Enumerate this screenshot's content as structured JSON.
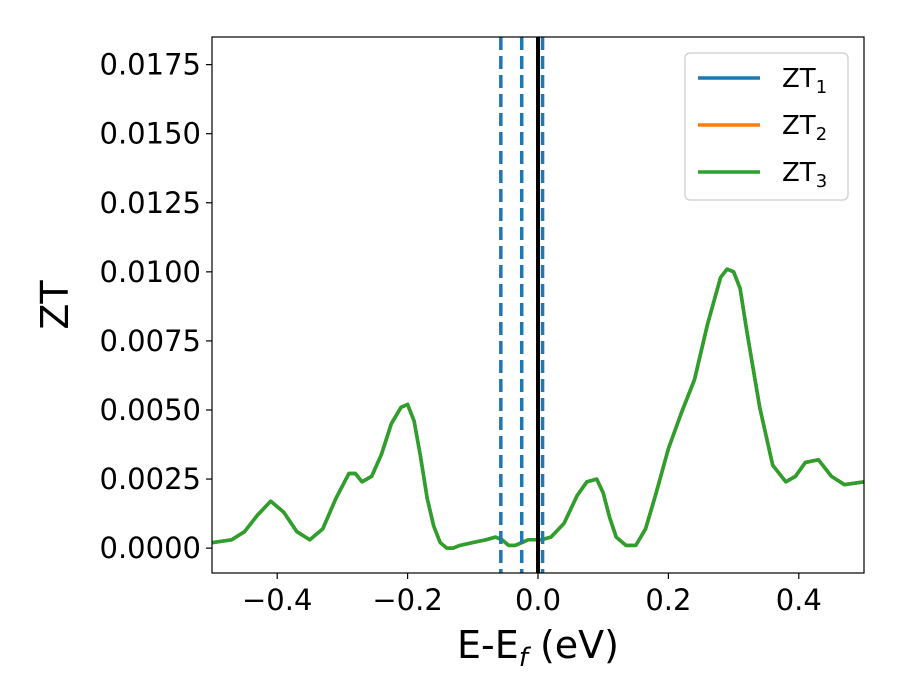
{
  "chart_data": {
    "type": "line",
    "xlabel_main": "E-E",
    "xlabel_sub": "f",
    "xlabel_unit": " (eV)",
    "ylabel": "ZT",
    "xlim": [
      -0.5,
      0.5
    ],
    "ylim": [
      -0.0009,
      0.0185
    ],
    "xticks": [
      -0.4,
      -0.2,
      0.0,
      0.2,
      0.4
    ],
    "xtick_labels": [
      "−0.4",
      "−0.2",
      "0.0",
      "0.2",
      "0.4"
    ],
    "yticks": [
      0.0,
      0.0025,
      0.005,
      0.0075,
      0.01,
      0.0125,
      0.015,
      0.0175
    ],
    "ytick_labels": [
      "0.0000",
      "0.0025",
      "0.0050",
      "0.0075",
      "0.0100",
      "0.0125",
      "0.0150",
      "0.0175"
    ],
    "legend_position": "top-right",
    "grid": false,
    "vlines": [
      {
        "x": -0.057,
        "style": "dashed",
        "color": "#1f77b4"
      },
      {
        "x": -0.025,
        "style": "dashed",
        "color": "#1f77b4"
      },
      {
        "x": 0.007,
        "style": "dashed",
        "color": "#1f77b4"
      },
      {
        "x": 0.0,
        "style": "solid",
        "color": "#000000"
      }
    ],
    "series": [
      {
        "name_main": "ZT",
        "name_sub": "1",
        "color": "#1f77b4",
        "x": [
          -0.5,
          -0.47,
          -0.45,
          -0.43,
          -0.41,
          -0.39,
          -0.37,
          -0.35,
          -0.33,
          -0.31,
          -0.29,
          -0.28,
          -0.27,
          -0.255,
          -0.24,
          -0.225,
          -0.21,
          -0.2,
          -0.19,
          -0.18,
          -0.17,
          -0.16,
          -0.15,
          -0.14,
          -0.13,
          -0.12,
          -0.1,
          -0.08,
          -0.065,
          -0.055,
          -0.045,
          -0.035,
          -0.025,
          -0.015,
          -0.005,
          0.005,
          0.02,
          0.04,
          0.06,
          0.075,
          0.09,
          0.1,
          0.11,
          0.12,
          0.135,
          0.15,
          0.165,
          0.18,
          0.2,
          0.22,
          0.24,
          0.26,
          0.28,
          0.29,
          0.3,
          0.31,
          0.32,
          0.34,
          0.36,
          0.38,
          0.395,
          0.41,
          0.43,
          0.45,
          0.47,
          0.5
        ],
        "y": [
          0.0002,
          0.0003,
          0.0006,
          0.0012,
          0.0017,
          0.0013,
          0.0006,
          0.0003,
          0.0007,
          0.0018,
          0.0027,
          0.0027,
          0.0024,
          0.0026,
          0.0034,
          0.0045,
          0.0051,
          0.0052,
          0.0046,
          0.0033,
          0.0018,
          0.0008,
          0.0002,
          0.0,
          0.0,
          0.0001,
          0.0002,
          0.0003,
          0.0004,
          0.0003,
          0.0001,
          0.0001,
          0.0002,
          0.0003,
          0.0003,
          0.0003,
          0.0004,
          0.0009,
          0.0019,
          0.0024,
          0.0025,
          0.002,
          0.0011,
          0.0004,
          0.0001,
          0.0001,
          0.0007,
          0.0019,
          0.0036,
          0.0049,
          0.0061,
          0.0081,
          0.0098,
          0.0101,
          0.01,
          0.0094,
          0.0079,
          0.0051,
          0.003,
          0.0024,
          0.0026,
          0.0031,
          0.0032,
          0.0026,
          0.0023,
          0.0024
        ]
      },
      {
        "name_main": "ZT",
        "name_sub": "2",
        "color": "#ff7f0e",
        "x": [
          -0.5,
          -0.47,
          -0.45,
          -0.43,
          -0.41,
          -0.39,
          -0.37,
          -0.35,
          -0.33,
          -0.31,
          -0.29,
          -0.28,
          -0.27,
          -0.255,
          -0.24,
          -0.225,
          -0.21,
          -0.2,
          -0.19,
          -0.18,
          -0.17,
          -0.16,
          -0.15,
          -0.14,
          -0.13,
          -0.12,
          -0.1,
          -0.08,
          -0.065,
          -0.055,
          -0.045,
          -0.035,
          -0.025,
          -0.015,
          -0.005,
          0.005,
          0.02,
          0.04,
          0.06,
          0.075,
          0.09,
          0.1,
          0.11,
          0.12,
          0.135,
          0.15,
          0.165,
          0.18,
          0.2,
          0.22,
          0.24,
          0.26,
          0.28,
          0.29,
          0.3,
          0.31,
          0.32,
          0.34,
          0.36,
          0.38,
          0.395,
          0.41,
          0.43,
          0.45,
          0.47,
          0.5
        ],
        "y": [
          0.0002,
          0.0003,
          0.0006,
          0.0012,
          0.0017,
          0.0013,
          0.0006,
          0.0003,
          0.0007,
          0.0018,
          0.0027,
          0.0027,
          0.0024,
          0.0026,
          0.0034,
          0.0045,
          0.0051,
          0.0052,
          0.0046,
          0.0033,
          0.0018,
          0.0008,
          0.0002,
          0.0,
          0.0,
          0.0001,
          0.0002,
          0.0003,
          0.0004,
          0.0003,
          0.0001,
          0.0001,
          0.0002,
          0.0003,
          0.0003,
          0.0003,
          0.0004,
          0.0009,
          0.0019,
          0.0024,
          0.0025,
          0.002,
          0.0011,
          0.0004,
          0.0001,
          0.0001,
          0.0007,
          0.0019,
          0.0036,
          0.0049,
          0.0061,
          0.0081,
          0.0098,
          0.0101,
          0.01,
          0.0094,
          0.0079,
          0.0051,
          0.003,
          0.0024,
          0.0026,
          0.0031,
          0.0032,
          0.0026,
          0.0023,
          0.0024
        ]
      },
      {
        "name_main": "ZT",
        "name_sub": "3",
        "color": "#2ca02c",
        "x": [
          -0.5,
          -0.47,
          -0.45,
          -0.43,
          -0.41,
          -0.39,
          -0.37,
          -0.35,
          -0.33,
          -0.31,
          -0.29,
          -0.28,
          -0.27,
          -0.255,
          -0.24,
          -0.225,
          -0.21,
          -0.2,
          -0.19,
          -0.18,
          -0.17,
          -0.16,
          -0.15,
          -0.14,
          -0.13,
          -0.12,
          -0.1,
          -0.08,
          -0.065,
          -0.055,
          -0.045,
          -0.035,
          -0.025,
          -0.015,
          -0.005,
          0.005,
          0.02,
          0.04,
          0.06,
          0.075,
          0.09,
          0.1,
          0.11,
          0.12,
          0.135,
          0.15,
          0.165,
          0.18,
          0.2,
          0.22,
          0.24,
          0.26,
          0.28,
          0.29,
          0.3,
          0.31,
          0.32,
          0.34,
          0.36,
          0.38,
          0.395,
          0.41,
          0.43,
          0.45,
          0.47,
          0.5
        ],
        "y": [
          0.0002,
          0.0003,
          0.0006,
          0.0012,
          0.0017,
          0.0013,
          0.0006,
          0.0003,
          0.0007,
          0.0018,
          0.0027,
          0.0027,
          0.0024,
          0.0026,
          0.0034,
          0.0045,
          0.0051,
          0.0052,
          0.0046,
          0.0033,
          0.0018,
          0.0008,
          0.0002,
          0.0,
          0.0,
          0.0001,
          0.0002,
          0.0003,
          0.0004,
          0.0003,
          0.0001,
          0.0001,
          0.0002,
          0.0003,
          0.0003,
          0.0003,
          0.0004,
          0.0009,
          0.0019,
          0.0024,
          0.0025,
          0.002,
          0.0011,
          0.0004,
          0.0001,
          0.0001,
          0.0007,
          0.0019,
          0.0036,
          0.0049,
          0.0061,
          0.0081,
          0.0098,
          0.0101,
          0.01,
          0.0094,
          0.0079,
          0.0051,
          0.003,
          0.0024,
          0.0026,
          0.0031,
          0.0032,
          0.0026,
          0.0023,
          0.0024
        ]
      }
    ]
  }
}
